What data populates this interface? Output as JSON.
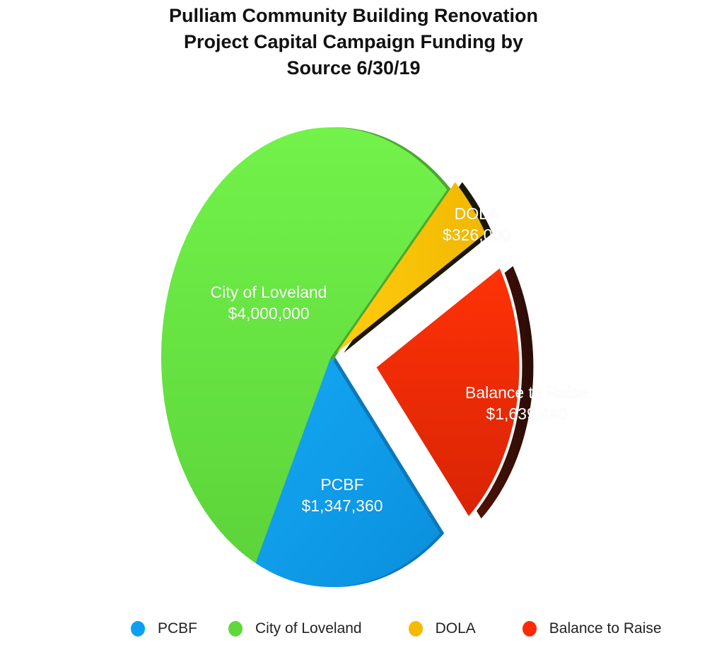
{
  "title": {
    "line1": "Pulliam Community Building Renovation",
    "line2": "Project Capital Campaign Funding by",
    "line3": "Source 6/30/19"
  },
  "labels": {
    "pcbf_name": "PCBF",
    "pcbf_value": "$1,347,360",
    "city_name": "City of Loveland",
    "city_value": "$4,000,000",
    "dola_name": "DOLA",
    "dola_value": "$326,000",
    "balance_name": "Balance to Raise",
    "balance_value": "$1,639,440"
  },
  "legend": [
    {
      "label": "PCBF",
      "color": "#0ea0f0"
    },
    {
      "label": "City of Loveland",
      "color": "#5fd83a"
    },
    {
      "label": "DOLA",
      "color": "#f7b900"
    },
    {
      "label": "Balance to Raise",
      "color": "#ff2a00"
    }
  ],
  "chart_data": {
    "type": "pie",
    "title": "Pulliam Community Building Renovation Project Capital Campaign Funding by Source 6/30/19",
    "categories": [
      "PCBF",
      "City of Loveland",
      "DOLA",
      "Balance to Raise"
    ],
    "values": [
      1347360,
      4000000,
      326000,
      1639440
    ],
    "value_labels": [
      "$1,347,360",
      "$4,000,000",
      "$326,000",
      "$1,639,440"
    ],
    "colors": [
      "#0ea0f0",
      "#6ef048",
      "#ffc800",
      "#ff3000"
    ],
    "exploded": [
      "DOLA",
      "Balance to Raise"
    ],
    "style": "3d",
    "legend_position": "bottom"
  }
}
